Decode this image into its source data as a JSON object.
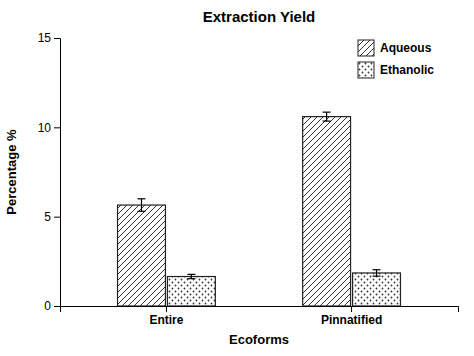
{
  "chart_data": {
    "type": "bar",
    "title": "Extraction Yield",
    "x_label": "Ecoforms",
    "y_label": "Percentage %",
    "categories": [
      "Entire",
      "Pinnatified"
    ],
    "series": [
      {
        "name": "Aqueous",
        "color": "white",
        "values": [
          5.65,
          10.6
        ],
        "errors": [
          0.35,
          0.25
        ]
      },
      {
        "name": "Ethanolic",
        "color": "white",
        "values": [
          1.65,
          1.85
        ],
        "errors": [
          0.12,
          0.18
        ]
      }
    ],
    "ylim": [
      0,
      15
    ],
    "yticks": [
      0,
      5,
      10,
      15
    ],
    "grid": false,
    "legend": "upper right"
  }
}
